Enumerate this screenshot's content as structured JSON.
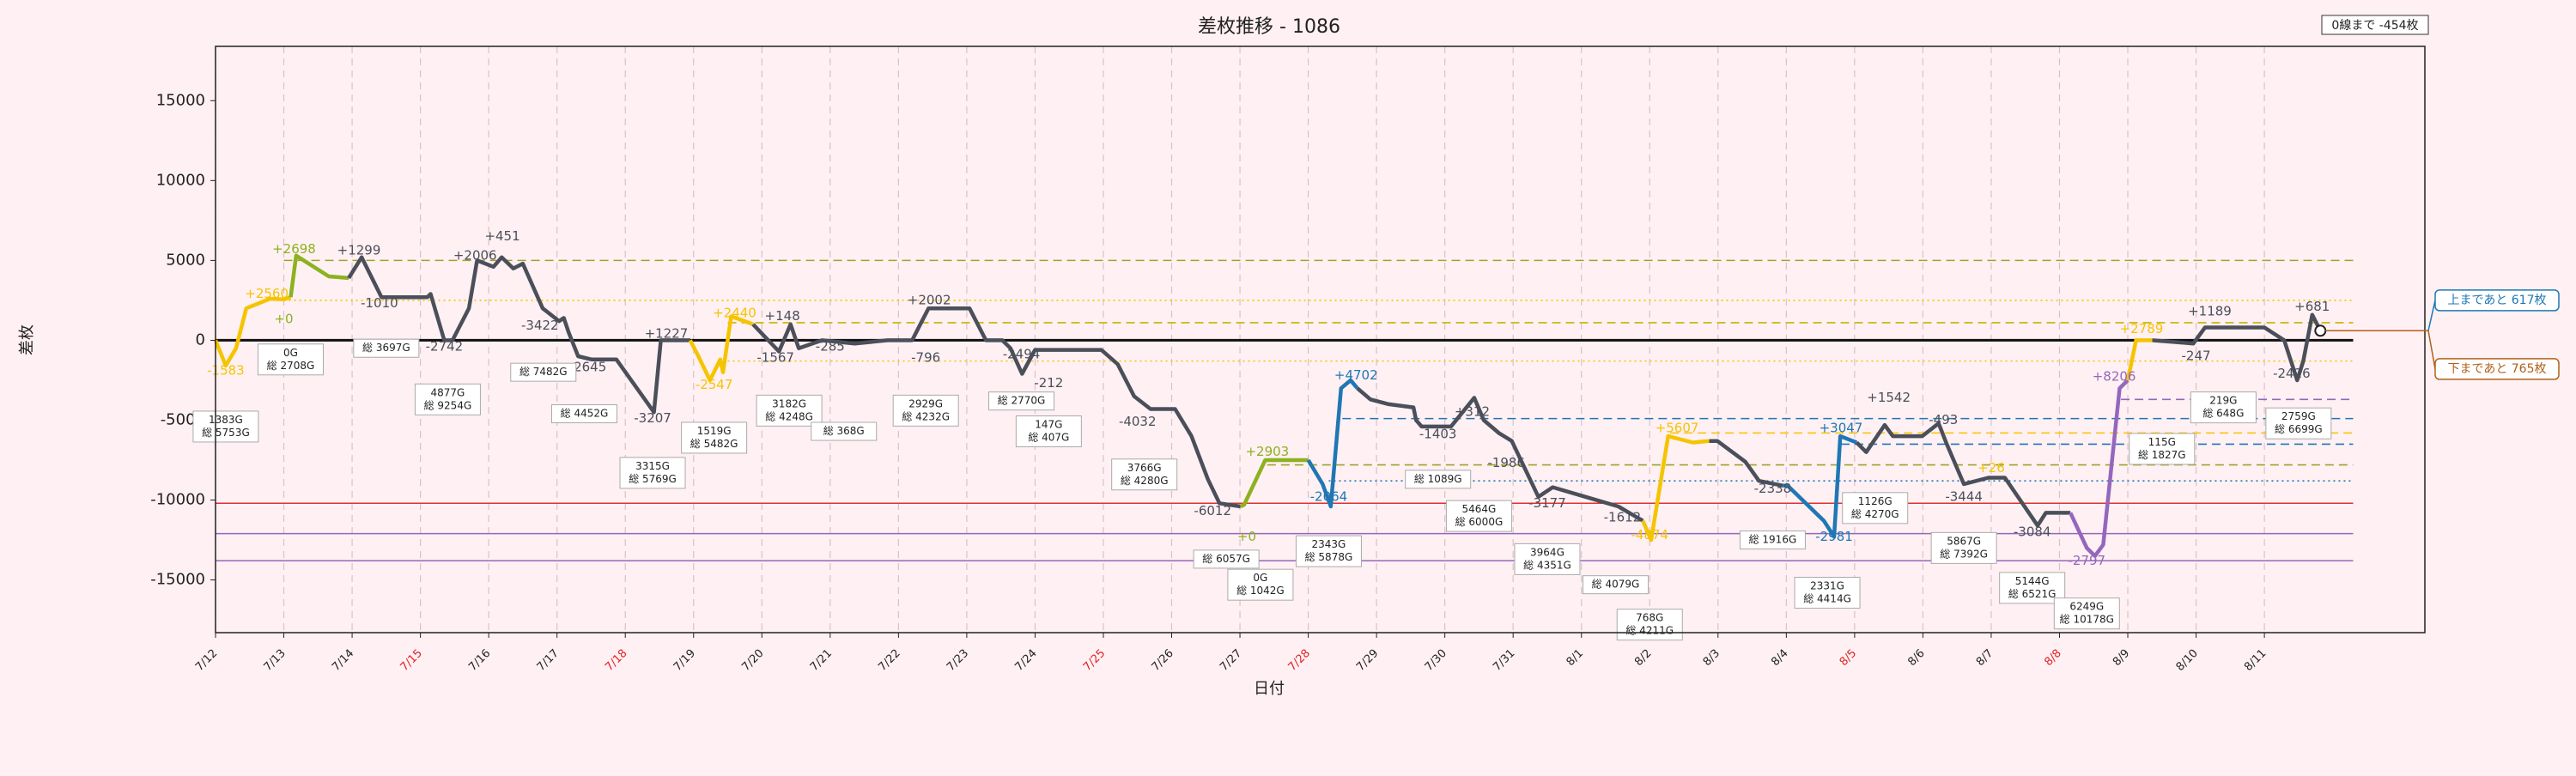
{
  "chart_data": {
    "type": "line",
    "title": "差枚推移 - 1086",
    "xlabel": "日付",
    "ylabel": "差枚",
    "top_note": "0線まで -454枚",
    "callouts": [
      {
        "text": "上まであと 617枚",
        "color": "#1f77b4",
        "y": 2500
      },
      {
        "text": "下まであと 765枚",
        "color": "#b0601a",
        "y": -1800
      }
    ],
    "xlim": [
      0,
      32.35
    ],
    "xticks": [
      {
        "value": 0,
        "label": "7/12"
      },
      {
        "value": 1,
        "label": "7/13"
      },
      {
        "value": 2,
        "label": "7/14"
      },
      {
        "value": 3,
        "label": "7/15"
      },
      {
        "value": 4,
        "label": "7/16"
      },
      {
        "value": 5,
        "label": "7/17"
      },
      {
        "value": 6,
        "label": "7/18"
      },
      {
        "value": 7,
        "label": "7/19"
      },
      {
        "value": 8,
        "label": "7/20"
      },
      {
        "value": 9,
        "label": "7/21"
      },
      {
        "value": 10,
        "label": "7/22"
      },
      {
        "value": 11,
        "label": "7/23"
      },
      {
        "value": 12,
        "label": "7/24"
      },
      {
        "value": 13,
        "label": "7/25"
      },
      {
        "value": 14,
        "label": "7/26"
      },
      {
        "value": 15,
        "label": "7/27"
      },
      {
        "value": 16,
        "label": "7/28"
      },
      {
        "value": 17,
        "label": "7/29"
      },
      {
        "value": 18,
        "label": "7/30"
      },
      {
        "value": 19,
        "label": "7/31"
      },
      {
        "value": 20,
        "label": "8/1"
      },
      {
        "value": 21,
        "label": "8/2"
      },
      {
        "value": 22,
        "label": "8/3"
      },
      {
        "value": 23,
        "label": "8/4"
      },
      {
        "value": 24,
        "label": "8/5"
      },
      {
        "value": 25,
        "label": "8/6"
      },
      {
        "value": 26,
        "label": "8/7"
      },
      {
        "value": 27,
        "label": "8/8"
      },
      {
        "value": 28,
        "label": "8/9"
      },
      {
        "value": 29,
        "label": "8/10"
      },
      {
        "value": 30,
        "label": "8/11"
      }
    ],
    "xtick_colors": [
      "#222",
      "#222",
      "#222",
      "#e02020",
      "#222",
      "#222",
      "#e02020",
      "#222",
      "#222",
      "#222",
      "#222",
      "#222",
      "#222",
      "#e02020",
      "#222",
      "#222",
      "#e02020",
      "#222",
      "#222",
      "#222",
      "#222",
      "#222",
      "#222",
      "#222",
      "#e02020",
      "#222",
      "#222",
      "#e02020",
      "#222",
      "#222",
      "#222"
    ],
    "ylim": [
      -18300,
      18400
    ],
    "yticks": [
      -15000,
      -10000,
      -5000,
      0,
      5000,
      10000,
      15000
    ],
    "grid": true,
    "segments": [
      {
        "color": "#f5c400",
        "x": [
          0,
          0.15,
          0.3,
          0.45,
          0.8,
          1.0,
          1.1
        ],
        "values": [
          0,
          -1583,
          -500,
          2000,
          2600,
          2560,
          2700
        ]
      },
      {
        "color": "#8cb21f",
        "x": [
          1.1,
          1.18,
          1.66,
          1.95
        ],
        "values": [
          2700,
          5300,
          4000,
          3900
        ]
      },
      {
        "color": "#4a4f5a",
        "x": [
          1.95,
          2.14,
          2.43,
          3.1,
          3.15,
          3.35,
          3.47,
          3.71,
          3.83,
          4.07,
          4.19,
          4.36,
          4.5,
          4.79,
          5.03,
          5.1,
          5.17,
          5.31,
          5.51,
          5.87,
          6.42,
          6.52,
          6.95
        ],
        "values": [
          3900,
          5200,
          2700,
          2700,
          2900,
          0,
          0,
          2000,
          5000,
          4600,
          5200,
          4500,
          4800,
          2000,
          1200,
          1400,
          500,
          -1000,
          -1200,
          -1200,
          -4500,
          0,
          0
        ]
      },
      {
        "color": "#f5c400",
        "x": [
          6.95,
          7.07,
          7.24,
          7.39,
          7.43,
          7.55,
          7.87
        ],
        "values": [
          0,
          -1000,
          -2500,
          -1200,
          -2000,
          1500,
          1000
        ]
      },
      {
        "color": "#4a4f5a",
        "x": [
          7.87,
          8.25,
          8.42,
          8.54,
          8.88,
          9.36,
          9.84,
          10.2,
          10.32,
          10.44,
          11.04,
          11.28,
          11.52,
          11.64,
          11.81,
          12.0,
          12.97,
          13.21,
          13.45,
          13.69,
          14.05,
          14.29,
          14.53,
          14.7,
          15.01
        ],
        "values": [
          1000,
          -700,
          1000,
          -500,
          0,
          -200,
          0,
          0,
          1000,
          2000,
          2000,
          0,
          0,
          -500,
          -2100,
          -600,
          -600,
          -1500,
          -3500,
          -4300,
          -4300,
          -6000,
          -8700,
          -10200,
          -10400
        ]
      },
      {
        "color": "#8cb21f",
        "x": [
          15.01,
          15.06,
          15.37,
          16.0
        ],
        "values": [
          -10400,
          -10300,
          -7500,
          -7500
        ]
      },
      {
        "color": "#1f77b4",
        "x": [
          16.0,
          16.21,
          16.33,
          16.48,
          16.62,
          16.72
        ],
        "values": [
          -7500,
          -9000,
          -10400,
          -3000,
          -2500,
          -3000
        ]
      },
      {
        "color": "#4a4f5a",
        "x": [
          16.72,
          16.91,
          17.18,
          17.54,
          17.58,
          17.66,
          18.09,
          18.43,
          18.57,
          18.79,
          18.98,
          19.37,
          19.58,
          20.06,
          20.54,
          20.9
        ],
        "values": [
          -3000,
          -3700,
          -4000,
          -4200,
          -5000,
          -5400,
          -5400,
          -3600,
          -5000,
          -5800,
          -6300,
          -9800,
          -9200,
          -9800,
          -10400,
          -11300
        ]
      },
      {
        "color": "#f5c400",
        "x": [
          20.9,
          21.02,
          21.27,
          21.63,
          21.87
        ],
        "values": [
          -11300,
          -12500,
          -6000,
          -6400,
          -6300
        ]
      },
      {
        "color": "#4a4f5a",
        "x": [
          21.87,
          21.99,
          22.4,
          22.6,
          22.95
        ],
        "values": [
          -6300,
          -6300,
          -7600,
          -8800,
          -9100
        ]
      },
      {
        "color": "#1f77b4",
        "x": [
          22.95,
          23.02,
          23.55,
          23.7,
          23.79,
          24.03
        ],
        "values": [
          -9100,
          -9100,
          -11300,
          -12300,
          -6000,
          -6400
        ]
      },
      {
        "color": "#4a4f5a",
        "x": [
          24.03,
          24.17,
          24.44,
          24.56,
          24.99,
          25.23,
          25.35,
          25.6,
          25.96,
          26.2,
          26.68,
          26.8,
          27.16
        ],
        "values": [
          -6400,
          -7000,
          -5300,
          -6000,
          -6000,
          -5200,
          -6500,
          -9000,
          -8600,
          -8600,
          -11600,
          -10800,
          -10800
        ]
      },
      {
        "color": "#9467bd",
        "x": [
          27.16,
          27.4,
          27.52,
          27.64,
          27.88,
          28.0
        ],
        "values": [
          -10800,
          -13000,
          -13500,
          -12800,
          -3000,
          -2500
        ]
      },
      {
        "color": "#f5c400",
        "x": [
          28.0,
          28.12,
          28.36
        ],
        "values": [
          -2500,
          0,
          0
        ]
      },
      {
        "color": "#4a4f5a",
        "x": [
          28.36,
          28.96,
          29.13,
          30.0,
          30.29,
          30.48,
          30.57,
          30.7,
          30.82
        ],
        "values": [
          0,
          -200,
          800,
          800,
          0,
          -2500,
          -1300,
          1600,
          600
        ]
      }
    ],
    "reference_lines": [
      {
        "value": 5000,
        "color": "#9aa52a",
        "style": "dashed",
        "from": 1.0
      },
      {
        "value": 2500,
        "color": "#f5c400",
        "style": "dotted",
        "from": 1.0
      },
      {
        "value": 1100,
        "color": "#c8b400",
        "style": "dashed",
        "from": 7.5
      },
      {
        "value": -1300,
        "color": "#f5c400",
        "style": "dotted",
        "from": 7.5
      },
      {
        "value": -3700,
        "color": "#9467bd",
        "style": "dashed",
        "from": 27.9
      },
      {
        "value": -4900,
        "color": "#1f77b4",
        "style": "dashed",
        "from": 16.5
      },
      {
        "value": -5800,
        "color": "#f5c400",
        "style": "dashed",
        "from": 21.3
      },
      {
        "value": -6500,
        "color": "#1f77b4",
        "style": "dashed",
        "from": 23.8
      },
      {
        "value": -7800,
        "color": "#9aa52a",
        "style": "dashed",
        "from": 15.4
      },
      {
        "value": -8800,
        "color": "#1f77b4",
        "style": "dotted",
        "from": 16.3
      },
      {
        "value": -10200,
        "color": "#e03030",
        "style": "solid",
        "from": 0
      },
      {
        "value": -12100,
        "color": "#9467bd",
        "style": "solid",
        "from": 0
      },
      {
        "value": -13800,
        "color": "#9467bd",
        "style": "solid",
        "from": 0
      }
    ],
    "delta_labels": [
      {
        "text": "-1583",
        "x": 0.15,
        "y": -1900,
        "color": "#f5c400"
      },
      {
        "text": "+2560",
        "x": 0.75,
        "y": 2900,
        "color": "#f5c400"
      },
      {
        "text": "+0",
        "x": 1.0,
        "y": 1300,
        "color": "#8cb21f"
      },
      {
        "text": "+2698",
        "x": 1.15,
        "y": 5700,
        "color": "#8cb21f"
      },
      {
        "text": "+1299",
        "x": 2.1,
        "y": 5600,
        "color": "#4a4f5a"
      },
      {
        "text": "-1010",
        "x": 2.4,
        "y": 2300,
        "color": "#4a4f5a"
      },
      {
        "text": "-2742",
        "x": 3.35,
        "y": -400,
        "color": "#4a4f5a"
      },
      {
        "text": "+2006",
        "x": 3.8,
        "y": 5300,
        "color": "#4a4f5a"
      },
      {
        "text": "+451",
        "x": 4.2,
        "y": 6500,
        "color": "#4a4f5a"
      },
      {
        "text": "-3422",
        "x": 4.75,
        "y": 900,
        "color": "#4a4f5a"
      },
      {
        "text": "-2645",
        "x": 5.45,
        "y": -1700,
        "color": "#4a4f5a"
      },
      {
        "text": "+1227",
        "x": 6.6,
        "y": 400,
        "color": "#4a4f5a"
      },
      {
        "text": "-3207",
        "x": 6.4,
        "y": -4900,
        "color": "#4a4f5a"
      },
      {
        "text": "+2440",
        "x": 7.6,
        "y": 1700,
        "color": "#f5c400"
      },
      {
        "text": "-2547",
        "x": 7.3,
        "y": -2800,
        "color": "#f5c400"
      },
      {
        "text": "+148",
        "x": 8.3,
        "y": 1500,
        "color": "#4a4f5a"
      },
      {
        "text": "-1567",
        "x": 8.2,
        "y": -1100,
        "color": "#4a4f5a"
      },
      {
        "text": "-285",
        "x": 9.0,
        "y": -400,
        "color": "#4a4f5a"
      },
      {
        "text": "+2002",
        "x": 10.45,
        "y": 2500,
        "color": "#4a4f5a"
      },
      {
        "text": "-796",
        "x": 10.4,
        "y": -1100,
        "color": "#4a4f5a"
      },
      {
        "text": "-2494",
        "x": 11.8,
        "y": -900,
        "color": "#4a4f5a"
      },
      {
        "text": "-212",
        "x": 12.2,
        "y": -2700,
        "color": "#4a4f5a"
      },
      {
        "text": "-4032",
        "x": 13.5,
        "y": -5100,
        "color": "#4a4f5a"
      },
      {
        "text": "-6012",
        "x": 14.6,
        "y": -10700,
        "color": "#4a4f5a"
      },
      {
        "text": "+2903",
        "x": 15.4,
        "y": -7000,
        "color": "#8cb21f"
      },
      {
        "text": "+0",
        "x": 15.1,
        "y": -12300,
        "color": "#8cb21f"
      },
      {
        "text": "-2064",
        "x": 16.3,
        "y": -9800,
        "color": "#1f77b4"
      },
      {
        "text": "+4702",
        "x": 16.7,
        "y": -2200,
        "color": "#1f77b4"
      },
      {
        "text": "+312",
        "x": 18.4,
        "y": -4500,
        "color": "#4a4f5a"
      },
      {
        "text": "-1403",
        "x": 17.9,
        "y": -5900,
        "color": "#4a4f5a"
      },
      {
        "text": "-1986",
        "x": 18.9,
        "y": -7700,
        "color": "#4a4f5a"
      },
      {
        "text": "-3177",
        "x": 19.5,
        "y": -10200,
        "color": "#4a4f5a"
      },
      {
        "text": "-1612",
        "x": 20.6,
        "y": -11100,
        "color": "#4a4f5a"
      },
      {
        "text": "+5607",
        "x": 21.4,
        "y": -5500,
        "color": "#f5c400"
      },
      {
        "text": "-4874",
        "x": 21.0,
        "y": -12200,
        "color": "#f5c400"
      },
      {
        "text": "-2338",
        "x": 22.8,
        "y": -9300,
        "color": "#4a4f5a"
      },
      {
        "text": "+3047",
        "x": 23.8,
        "y": -5500,
        "color": "#1f77b4"
      },
      {
        "text": "-2981",
        "x": 23.7,
        "y": -12300,
        "color": "#1f77b4"
      },
      {
        "text": "+1542",
        "x": 24.5,
        "y": -3600,
        "color": "#4a4f5a"
      },
      {
        "text": "-493",
        "x": 25.3,
        "y": -5000,
        "color": "#4a4f5a"
      },
      {
        "text": "-3444",
        "x": 25.6,
        "y": -9800,
        "color": "#4a4f5a"
      },
      {
        "text": "+26",
        "x": 26.0,
        "y": -8000,
        "color": "#f5c400"
      },
      {
        "text": "-3084",
        "x": 26.6,
        "y": -12000,
        "color": "#4a4f5a"
      },
      {
        "text": "-2797",
        "x": 27.4,
        "y": -13800,
        "color": "#9467bd"
      },
      {
        "text": "+8206",
        "x": 27.8,
        "y": -2300,
        "color": "#9467bd"
      },
      {
        "text": "+2789",
        "x": 28.2,
        "y": 700,
        "color": "#f5c400"
      },
      {
        "text": "-247",
        "x": 29.0,
        "y": -1000,
        "color": "#4a4f5a"
      },
      {
        "text": "+1189",
        "x": 29.2,
        "y": 1800,
        "color": "#4a4f5a"
      },
      {
        "text": "-2426",
        "x": 30.4,
        "y": -2100,
        "color": "#4a4f5a"
      },
      {
        "text": "+681",
        "x": 30.7,
        "y": 2100,
        "color": "#4a4f5a"
      }
    ],
    "game_boxes": [
      {
        "lines": [
          "1383G",
          "総 5753G"
        ],
        "x": 0.15,
        "y": -5400
      },
      {
        "lines": [
          "0G",
          "総 2708G"
        ],
        "x": 1.1,
        "y": -1200
      },
      {
        "lines": [
          "総 3697G"
        ],
        "x": 2.5,
        "y": -500
      },
      {
        "lines": [
          "4877G",
          "総 9254G"
        ],
        "x": 3.4,
        "y": -3700
      },
      {
        "lines": [
          "総 7482G"
        ],
        "x": 4.8,
        "y": -2000
      },
      {
        "lines": [
          "総 4452G"
        ],
        "x": 5.4,
        "y": -4600
      },
      {
        "lines": [
          "3315G",
          "総 5769G"
        ],
        "x": 6.4,
        "y": -8300
      },
      {
        "lines": [
          "1519G",
          "総 5482G"
        ],
        "x": 7.3,
        "y": -6100
      },
      {
        "lines": [
          "3182G",
          "総 4248G"
        ],
        "x": 8.4,
        "y": -4400
      },
      {
        "lines": [
          "総 368G"
        ],
        "x": 9.2,
        "y": -5700
      },
      {
        "lines": [
          "2929G",
          "総 4232G"
        ],
        "x": 10.4,
        "y": -4400
      },
      {
        "lines": [
          "総 2770G"
        ],
        "x": 11.8,
        "y": -3800
      },
      {
        "lines": [
          "147G",
          "総 407G"
        ],
        "x": 12.2,
        "y": -5700
      },
      {
        "lines": [
          "3766G",
          "総 4280G"
        ],
        "x": 13.6,
        "y": -8400
      },
      {
        "lines": [
          "総 6057G"
        ],
        "x": 14.8,
        "y": -13700
      },
      {
        "lines": [
          "0G",
          "総 1042G"
        ],
        "x": 15.3,
        "y": -15300
      },
      {
        "lines": [
          "2343G",
          "総 5878G"
        ],
        "x": 16.3,
        "y": -13200
      },
      {
        "lines": [
          "総 1089G"
        ],
        "x": 17.9,
        "y": -8700
      },
      {
        "lines": [
          "5464G",
          "総 6000G"
        ],
        "x": 18.5,
        "y": -11000
      },
      {
        "lines": [
          "3964G",
          "総 4351G"
        ],
        "x": 19.5,
        "y": -13700
      },
      {
        "lines": [
          "総 4079G"
        ],
        "x": 20.5,
        "y": -15300
      },
      {
        "lines": [
          "768G",
          "総 4211G"
        ],
        "x": 21.0,
        "y": -17800
      },
      {
        "lines": [
          "総 1916G"
        ],
        "x": 22.8,
        "y": -12500
      },
      {
        "lines": [
          "2331G",
          "総 4414G"
        ],
        "x": 23.6,
        "y": -15800
      },
      {
        "lines": [
          "1126G",
          "総 4270G"
        ],
        "x": 24.3,
        "y": -10500
      },
      {
        "lines": [
          "5867G",
          "総 7392G"
        ],
        "x": 25.6,
        "y": -13000
      },
      {
        "lines": [
          "5144G",
          "総 6521G"
        ],
        "x": 26.6,
        "y": -15500
      },
      {
        "lines": [
          "6249G",
          "総 10178G"
        ],
        "x": 27.4,
        "y": -17100
      },
      {
        "lines": [
          "115G",
          "総 1827G"
        ],
        "x": 28.5,
        "y": -6800
      },
      {
        "lines": [
          "219G",
          "総 648G"
        ],
        "x": 29.4,
        "y": -4200
      },
      {
        "lines": [
          "2759G",
          "総 6699G"
        ],
        "x": 30.5,
        "y": -5200
      }
    ]
  }
}
